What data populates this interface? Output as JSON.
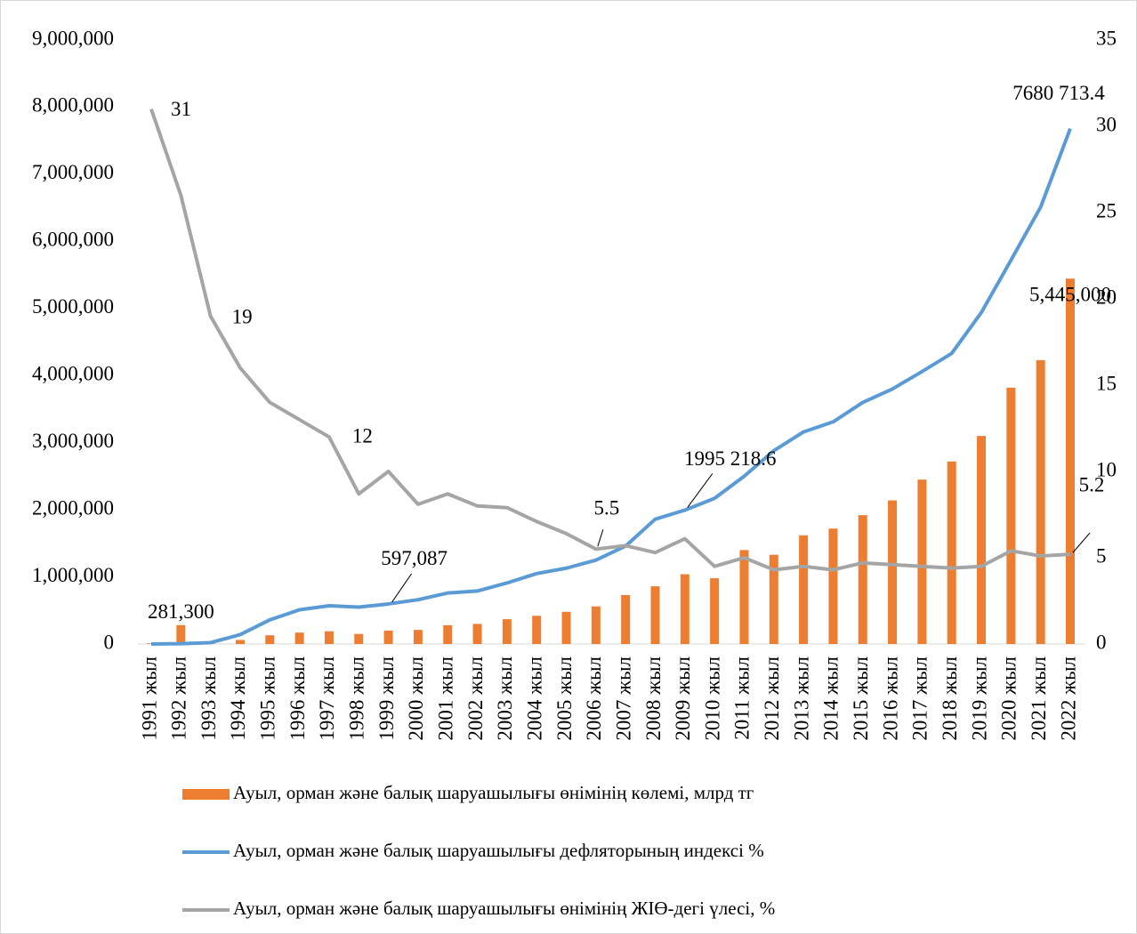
{
  "chart_data": {
    "type": "combo",
    "categories": [
      "1991 жыл",
      "1992 жыл",
      "1993 жыл",
      "1994 жыл",
      "1995 жыл",
      "1996 жыл",
      "1997 жыл",
      "1998 жыл",
      "1999 жыл",
      "2000 жыл",
      "2001 жыл",
      "2002 жыл",
      "2003 жыл",
      "2004 жыл",
      "2005 жыл",
      "2006 жыл",
      "2007 жыл",
      "2008 жыл",
      "2009 жыл",
      "2010 жыл",
      "2011 жыл",
      "2012 жыл",
      "2013 жыл",
      "2014 жыл",
      "2015 жыл",
      "2016 жыл",
      "2017 жыл",
      "2018 жыл",
      "2019 жыл",
      "2020 жыл",
      "2021 жыл",
      "2022 жыл"
    ],
    "series": [
      {
        "name": "Ауыл, орман және балық шаруашылығы өнімінің көлемі, млрд тг",
        "type": "bar",
        "color": "#ed7d31",
        "values": [
          10000,
          281300,
          5000,
          60000,
          130000,
          170000,
          190000,
          150000,
          200000,
          210000,
          280000,
          300000,
          370000,
          420000,
          480000,
          560000,
          730000,
          860000,
          1040000,
          980000,
          1400000,
          1330000,
          1620000,
          1720000,
          1920000,
          2140000,
          2450000,
          2720000,
          3100000,
          3820000,
          4230000,
          5445000
        ],
        "value_labels": [
          null,
          "281,300",
          null,
          null,
          null,
          null,
          null,
          null,
          null,
          null,
          null,
          null,
          null,
          null,
          null,
          null,
          null,
          null,
          null,
          null,
          null,
          null,
          null,
          null,
          null,
          null,
          null,
          null,
          null,
          null,
          null,
          "5,445,000"
        ]
      },
      {
        "name": "Ауыл, орман және балық шаруашылығы дефляторының индексі %",
        "type": "line",
        "color": "#5b9bd5",
        "values": [
          0,
          5000,
          20000,
          140000,
          360000,
          510000,
          570000,
          550000,
          597087,
          660000,
          760000,
          790000,
          910000,
          1050000,
          1130000,
          1250000,
          1460000,
          1860000,
          1995218.6,
          2170000,
          2500000,
          2880000,
          3160000,
          3310000,
          3600000,
          3800000,
          4060000,
          4330000,
          4940000,
          5720000,
          6510000,
          7680713.4
        ],
        "value_labels": [
          null,
          null,
          null,
          null,
          null,
          null,
          null,
          null,
          "597,087",
          null,
          null,
          null,
          null,
          null,
          null,
          null,
          null,
          null,
          "1995 218.6",
          null,
          null,
          null,
          null,
          null,
          null,
          null,
          null,
          null,
          null,
          null,
          null,
          "7680 713.4"
        ]
      },
      {
        "name": "Ауыл, орман және балық шаруашылығы өнімінің ЖІӨ-дегі үлесі, %",
        "type": "line",
        "axis": "y2",
        "color": "#a5a5a5",
        "values": [
          31,
          26,
          19,
          16,
          14,
          13,
          12,
          8.7,
          10,
          8.1,
          8.7,
          8,
          7.9,
          7.1,
          6.4,
          5.5,
          5.7,
          5.3,
          6.1,
          4.5,
          5,
          4.3,
          4.5,
          4.3,
          4.7,
          4.6,
          4.5,
          4.4,
          4.5,
          5.4,
          5.1,
          5.2
        ],
        "value_labels": [
          31,
          null,
          19,
          null,
          null,
          null,
          12,
          null,
          null,
          null,
          null,
          null,
          null,
          null,
          null,
          5.5,
          null,
          null,
          null,
          null,
          null,
          null,
          null,
          null,
          null,
          null,
          null,
          null,
          null,
          null,
          null,
          5.2
        ]
      }
    ],
    "ylim": [
      0,
      9000000
    ],
    "yticks": [
      0,
      {
        "value": 1000000,
        "label": "1,000,000"
      },
      {
        "value": 2000000,
        "label": "2,000,000"
      },
      {
        "value": 3000000,
        "label": "3,000,000"
      },
      {
        "value": 4000000,
        "label": "4,000,000"
      },
      {
        "value": 5000000,
        "label": "5,000,000"
      },
      {
        "value": 6000000,
        "label": "6,000,000"
      },
      {
        "value": 7000000,
        "label": "7,000,000"
      },
      {
        "value": 8000000,
        "label": "8,000,000"
      },
      {
        "value": 9000000,
        "label": "9,000,000"
      }
    ],
    "y2lim": [
      0,
      35
    ],
    "y2ticks": [
      0,
      5,
      10,
      15,
      20,
      25,
      30,
      35
    ],
    "legend": "bottom"
  }
}
